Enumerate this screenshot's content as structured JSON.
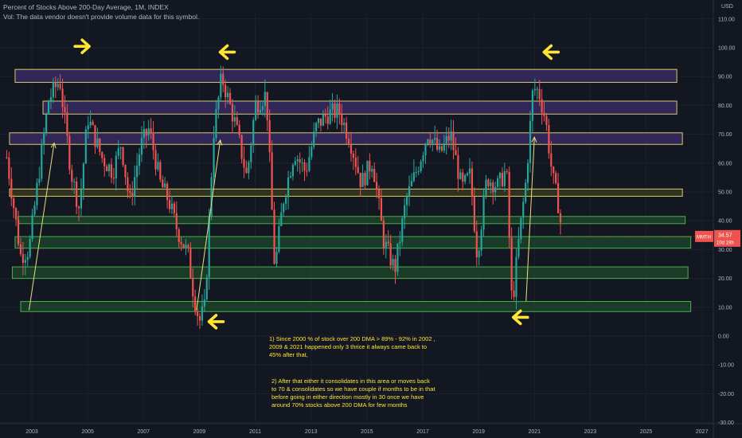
{
  "header": {
    "title": "Percent of Stocks Above 200-Day Average, 1M, INDEX",
    "volume_note": "Vol: The data vendor doesn't provide volume data for this symbol."
  },
  "price_axis": {
    "currency": "USD",
    "ticks": [
      "110.00",
      "100.00",
      "90.00",
      "80.00",
      "70.00",
      "60.00",
      "50.00",
      "40.00",
      "30.00",
      "20.00",
      "10.00",
      "0.00",
      "-10.00",
      "-20.00",
      "-30.00"
    ],
    "tick_values": [
      110,
      100,
      90,
      80,
      70,
      60,
      50,
      40,
      30,
      20,
      10,
      0,
      -10,
      -20,
      -30
    ],
    "current_symbol": "MMTH",
    "current_value": "34.57",
    "countdown": "10d 19h"
  },
  "colors": {
    "background": "#131722",
    "up": "#26a69a",
    "down": "#ef5350",
    "zone_purple": "#3b2d6e",
    "zone_yellow_border": "#d6cc6a",
    "zone_green": "#1f4a2c",
    "zone_green_border": "#4caf50",
    "annotation": "#ffe436"
  },
  "annotations": {
    "note1": "1) Since 2000 % of stock over 200 DMA > 89% - 92%  in 2002 ,\n2009 & 2021 happened  only 3 thrice it always came back to\n45% after that,",
    "note2": "2) After that either it consolidates in this area or moves back\nto 70 & consolidates so we have couple if months to be in that\nbefore going in either direction mostly  in 30 once we have\naround 70% stocks above 200 DMA for few months"
  },
  "chart_data": {
    "type": "candlestick",
    "title": "Percent of Stocks Above 200-Day Average, 1M, INDEX",
    "x_ticks": [
      "2003",
      "2005",
      "2007",
      "2009",
      "2011",
      "2013",
      "2015",
      "2017",
      "2019",
      "2021",
      "2023",
      "2025",
      "2027"
    ],
    "x_tick_values": [
      2003,
      2005,
      2007,
      2009,
      2011,
      2013,
      2015,
      2017,
      2019,
      2021,
      2023,
      2025,
      2027
    ],
    "xlim": [
      2002.1,
      2027.4
    ],
    "ylim": [
      -30,
      113
    ],
    "grid": true,
    "zones": [
      {
        "kind": "purple",
        "y0": 88,
        "y1": 92.5,
        "x0": 2002.4,
        "x1": 2026.1
      },
      {
        "kind": "purple",
        "y0": 77,
        "y1": 81.5,
        "x0": 2003.4,
        "x1": 2026.1
      },
      {
        "kind": "purple",
        "y0": 66.5,
        "y1": 70.5,
        "x0": 2002.2,
        "x1": 2026.3
      },
      {
        "kind": "yellow",
        "y0": 48.5,
        "y1": 51,
        "x0": 2002.2,
        "x1": 2026.3
      },
      {
        "kind": "green",
        "y0": 39,
        "y1": 41.5,
        "x0": 2002.5,
        "x1": 2026.4
      },
      {
        "kind": "green",
        "y0": 30.5,
        "y1": 34.5,
        "x0": 2002.4,
        "x1": 2026.6
      },
      {
        "kind": "green",
        "y0": 20,
        "y1": 24,
        "x0": 2002.3,
        "x1": 2026.5
      },
      {
        "kind": "green",
        "y0": 8.5,
        "y1": 12,
        "x0": 2002.6,
        "x1": 2026.6
      }
    ],
    "arrows_up": [
      {
        "x0": 2002.9,
        "y0": 9,
        "x1": 2003.8,
        "y1": 67
      },
      {
        "x0": 2008.9,
        "y0": 9,
        "x1": 2009.75,
        "y1": 68
      },
      {
        "x0": 2020.7,
        "y0": 12,
        "x1": 2021.0,
        "y1": 69
      }
    ],
    "markers": [
      {
        "x": 2004.8,
        "y": 100.5,
        "dir": "right"
      },
      {
        "x": 2010.0,
        "y": 98.5,
        "dir": "left"
      },
      {
        "x": 2021.6,
        "y": 98.5,
        "dir": "left"
      },
      {
        "x": 2009.6,
        "y": 5,
        "dir": "left"
      },
      {
        "x": 2020.5,
        "y": 6.5,
        "dir": "left"
      }
    ],
    "anchors": [
      [
        2002.1,
        62
      ],
      [
        2002.6,
        28
      ],
      [
        2002.9,
        30
      ],
      [
        2003.3,
        60
      ],
      [
        2003.6,
        82
      ],
      [
        2004.0,
        89
      ],
      [
        2004.4,
        57
      ],
      [
        2004.7,
        44
      ],
      [
        2005.0,
        76
      ],
      [
        2005.5,
        62
      ],
      [
        2005.9,
        57
      ],
      [
        2006.2,
        67
      ],
      [
        2006.5,
        46
      ],
      [
        2006.9,
        66
      ],
      [
        2007.2,
        72
      ],
      [
        2007.6,
        53
      ],
      [
        2007.9,
        47
      ],
      [
        2008.2,
        37
      ],
      [
        2008.6,
        28
      ],
      [
        2008.8,
        14
      ],
      [
        2009.0,
        5
      ],
      [
        2009.2,
        10
      ],
      [
        2009.5,
        70
      ],
      [
        2009.8,
        90
      ],
      [
        2010.3,
        73
      ],
      [
        2010.7,
        55
      ],
      [
        2011.0,
        80
      ],
      [
        2011.4,
        84
      ],
      [
        2011.7,
        23
      ],
      [
        2012.0,
        47
      ],
      [
        2012.4,
        64
      ],
      [
        2012.8,
        57
      ],
      [
        2013.2,
        73
      ],
      [
        2013.6,
        77
      ],
      [
        2014.0,
        78
      ],
      [
        2014.4,
        68
      ],
      [
        2014.8,
        53
      ],
      [
        2015.2,
        61
      ],
      [
        2015.6,
        33
      ],
      [
        2016.0,
        23
      ],
      [
        2016.4,
        47
      ],
      [
        2016.8,
        58
      ],
      [
        2017.2,
        71
      ],
      [
        2017.6,
        63
      ],
      [
        2018.0,
        70
      ],
      [
        2018.4,
        51
      ],
      [
        2018.7,
        56
      ],
      [
        2018.95,
        28
      ],
      [
        2019.3,
        55
      ],
      [
        2019.7,
        52
      ],
      [
        2020.0,
        58
      ],
      [
        2020.2,
        10
      ],
      [
        2020.45,
        34
      ],
      [
        2020.7,
        54
      ],
      [
        2020.95,
        86
      ],
      [
        2021.15,
        85
      ],
      [
        2021.4,
        75
      ],
      [
        2021.65,
        55
      ],
      [
        2021.85,
        46
      ],
      [
        2022.0,
        34.57
      ]
    ]
  }
}
